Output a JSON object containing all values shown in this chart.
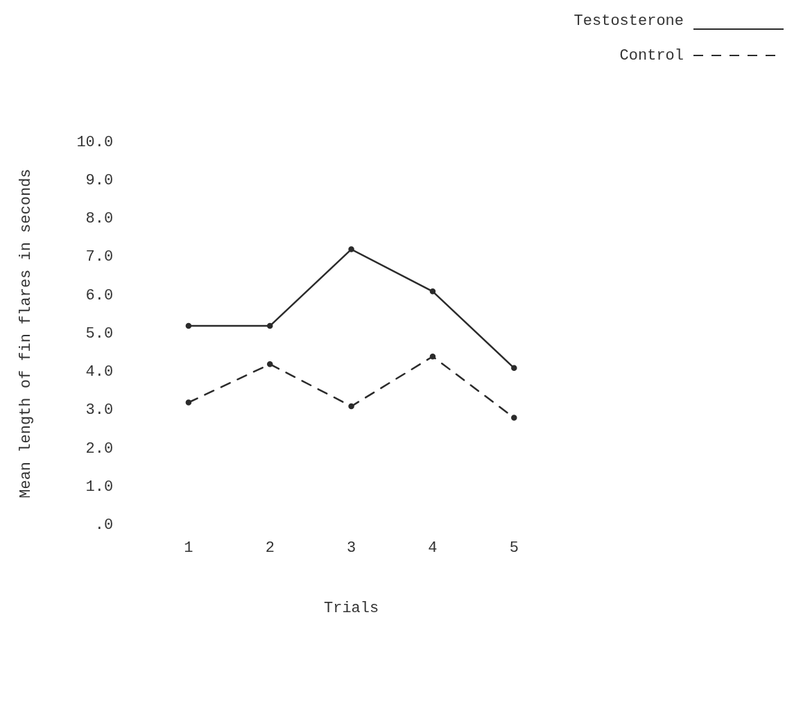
{
  "chart_data": {
    "type": "line",
    "xlabel": "Trials",
    "ylabel": "Mean length of fin flares in seconds",
    "categories": [
      "1",
      "2",
      "3",
      "4",
      "5"
    ],
    "series": [
      {
        "name": "Testosterone",
        "color": "#2b2b2b",
        "values": [
          5.2,
          5.2,
          7.2,
          6.1,
          4.1
        ],
        "line_style": "solid"
      },
      {
        "name": "Control",
        "color": "#2b2b2b",
        "values": [
          3.2,
          4.2,
          3.1,
          4.4,
          2.8
        ],
        "line_style": "dashed"
      }
    ],
    "ylim": [
      0,
      10
    ],
    "yticks": [
      {
        "value": 0,
        "label": ".0"
      },
      {
        "value": 1,
        "label": "1.0"
      },
      {
        "value": 2,
        "label": "2.0"
      },
      {
        "value": 3,
        "label": "3.0"
      },
      {
        "value": 4,
        "label": "4.0"
      },
      {
        "value": 5,
        "label": "5.0"
      },
      {
        "value": 6,
        "label": "6.0"
      },
      {
        "value": 7,
        "label": "7.0"
      },
      {
        "value": 8,
        "label": "8.0"
      },
      {
        "value": 9,
        "label": "9.0"
      },
      {
        "value": 10,
        "label": "10.0"
      }
    ],
    "grid": false,
    "legend": "top right",
    "marker": "circle"
  }
}
